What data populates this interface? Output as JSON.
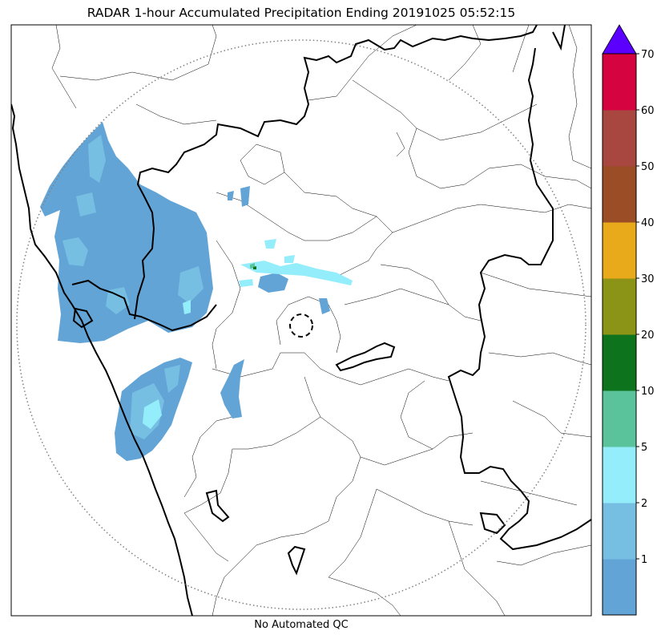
{
  "title": "RADAR 1-hour Accumulated Precipitation Ending 20191025 05:52:15",
  "xlabel": "No Automated QC",
  "colorbar": {
    "labels": [
      "1",
      "2",
      "5",
      "10",
      "20",
      "30",
      "40",
      "50",
      "60",
      "70"
    ],
    "colors": [
      "#63a4d6",
      "#76bfe3",
      "#94edfb",
      "#5bc39b",
      "#0d731c",
      "#8b9416",
      "#e8a91a",
      "#9b4e26",
      "#a7473f",
      "#d5033f"
    ],
    "extend_color": "#5b00ff"
  },
  "legend_colors": {
    "rain_light": "#63a4d6",
    "rain_medium": "#76bfe3",
    "rain_heavy": "#94edfb",
    "coastline": "#000000",
    "radar_range_ring": "#808080"
  }
}
